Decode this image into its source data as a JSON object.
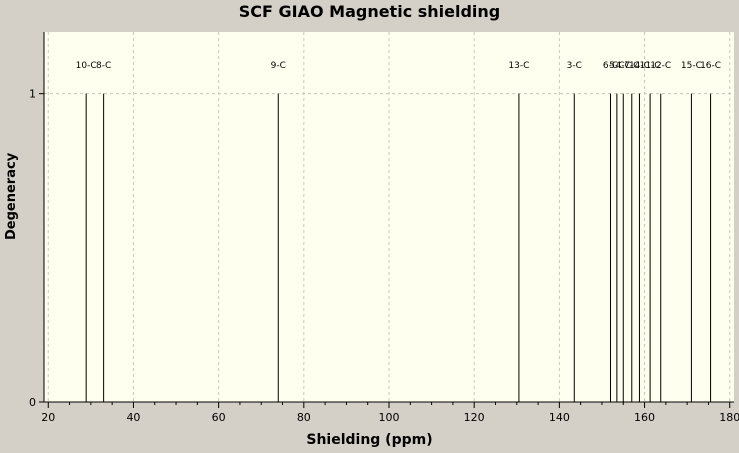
{
  "chart_data": {
    "type": "stick-spectrum",
    "title": "SCF GIAO Magnetic shielding",
    "xlabel": "Shielding (ppm)",
    "ylabel": "Degeneracy",
    "xlim": [
      19,
      181
    ],
    "ylim": [
      0,
      1.2
    ],
    "x_ticks": [
      "20",
      "40",
      "60",
      "80",
      "100",
      "120",
      "140",
      "160",
      "180"
    ],
    "y_ticks": [
      "0",
      "1"
    ],
    "grid": true,
    "background": "#fffff0",
    "line_color": "#000000",
    "peaks": [
      {
        "label": "10-C",
        "x": 28.9,
        "y": 1
      },
      {
        "label": "8-C",
        "x": 33.0,
        "y": 1
      },
      {
        "label": "9-C",
        "x": 74.0,
        "y": 1
      },
      {
        "label": "13-C",
        "x": 130.5,
        "y": 1
      },
      {
        "label": "3-C",
        "x": 143.5,
        "y": 1
      },
      {
        "label": "6-C",
        "x": 152.0,
        "y": 1
      },
      {
        "label": "5-C",
        "x": 153.5,
        "y": 1
      },
      {
        "label": "4-C",
        "x": 155.0,
        "y": 1
      },
      {
        "label": "7-C",
        "x": 157.0,
        "y": 1
      },
      {
        "label": "14-C",
        "x": 158.8,
        "y": 1
      },
      {
        "label": "11-C",
        "x": 161.3,
        "y": 1
      },
      {
        "label": "12-C",
        "x": 163.8,
        "y": 1
      },
      {
        "label": "15-C",
        "x": 171.0,
        "y": 1
      },
      {
        "label": "16-C",
        "x": 175.5,
        "y": 1
      }
    ]
  }
}
